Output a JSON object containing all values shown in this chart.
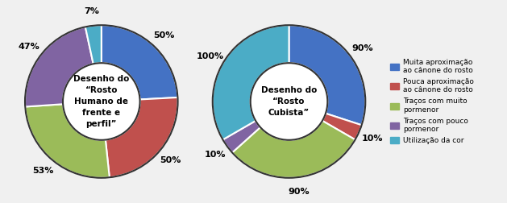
{
  "chart1_label": "Desenho do\n“Rosto\nHumano de\nfrente e\nperfil”",
  "chart2_label": "Desenho do\n“Rosto\nCubista”",
  "colors": [
    "#4472C4",
    "#C0504D",
    "#9BBB59",
    "#8064A2",
    "#4BACC6"
  ],
  "chart1_values": [
    50,
    50,
    53,
    47,
    7
  ],
  "chart1_labels": [
    "50%",
    "50%",
    "53%",
    "47%",
    "7%"
  ],
  "chart2_values": [
    90,
    10,
    90,
    10,
    100
  ],
  "chart2_labels": [
    "90%",
    "10%",
    "90%",
    "10%",
    "100%"
  ],
  "legend_labels": [
    "Muita aproximação\nao cânone do rosto",
    "Pouca aproximação\nao cânone do rosto",
    "Traços com muito\npormenor",
    "Traços com pouco\npormenor",
    "Utilização da cor"
  ],
  "background": "#f0f0f0",
  "figsize": [
    6.29,
    2.52
  ],
  "dpi": 100
}
